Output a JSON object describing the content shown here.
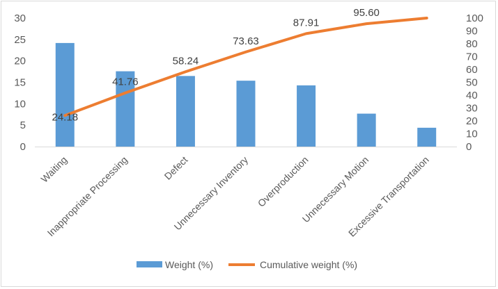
{
  "chart_data": {
    "type": "bar",
    "categories": [
      "Waiting",
      "Inappropriate Processing",
      "Defect",
      "Unnecessary Inventory",
      "Overproduction",
      "Unnecessary Motion",
      "Excessive Transportation"
    ],
    "series": [
      {
        "name": "Weight (%)",
        "type": "bar",
        "axis": "left",
        "color": "#5b9bd5",
        "values": [
          24.18,
          17.58,
          16.48,
          15.38,
          14.29,
          7.69,
          4.4
        ]
      },
      {
        "name": "Cumulative weight (%)",
        "type": "line",
        "axis": "right",
        "color": "#ed7d31",
        "values": [
          24.18,
          41.76,
          58.24,
          73.63,
          87.91,
          95.6,
          100
        ]
      }
    ],
    "data_labels": [
      "24.18",
      "41.76",
      "58.24",
      "73.63",
      "87.91",
      "95.60"
    ],
    "y_left": {
      "ylim": [
        0,
        30
      ],
      "ticks": [
        "0",
        "5",
        "10",
        "15",
        "20",
        "25",
        "30"
      ]
    },
    "y_right": {
      "ylim": [
        0,
        100
      ],
      "ticks": [
        "0",
        "10",
        "20",
        "30",
        "40",
        "50",
        "60",
        "70",
        "80",
        "90",
        "100"
      ]
    },
    "legend": [
      "Weight (%)",
      "Cumulative weight (%)"
    ],
    "legend_position": "bottom",
    "title": "",
    "xlabel": "",
    "ylabel": ""
  }
}
